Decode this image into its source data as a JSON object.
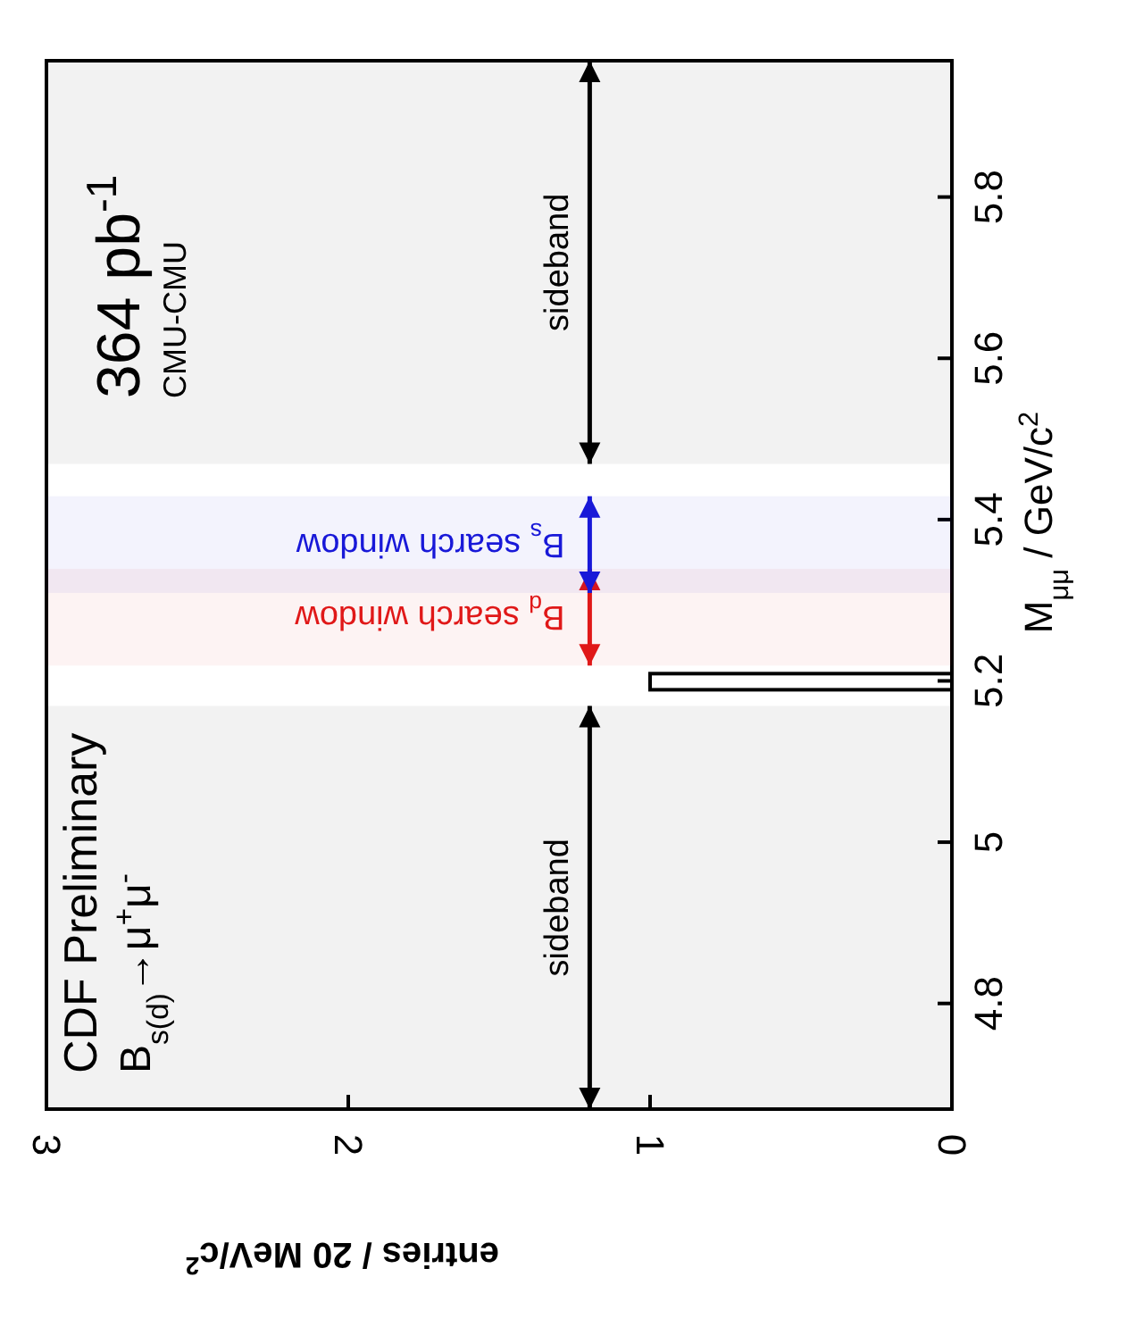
{
  "chart_data": {
    "type": "histogram",
    "orientation": "horizontal",
    "ylabel": "M$_{μμ}$ / GeV/c$^{2}$",
    "xlabel": "entries / 20 MeV/c$^{2}$",
    "bins": [
      5.189,
      5.209
    ],
    "values": [
      1
    ],
    "color": "#ffffff",
    "ylim": [
      4.669,
      5.969
    ],
    "yticks": [
      4.8,
      5,
      5.2,
      5.4,
      5.6,
      5.8
    ],
    "xlim": [
      3,
      0
    ],
    "xticks": [
      3,
      2,
      1,
      0
    ],
    "grid": false,
    "bands": [
      {
        "axis": "y",
        "from": 4.669,
        "to": 5.169,
        "label": "sideband",
        "color": "#000000"
      },
      {
        "axis": "y",
        "from": 5.219,
        "to": 5.339,
        "label": "B$_{d}$ search window",
        "color": "#e01818"
      },
      {
        "axis": "y",
        "from": 5.309,
        "to": 5.429,
        "label": "B$_{s}$ search window",
        "color": "#1818d8"
      },
      {
        "axis": "y",
        "from": 5.469,
        "to": 5.969,
        "label": "sideband",
        "color": "#000000"
      }
    ],
    "annotations": [
      "CDF Preliminary",
      "B$_{s(d)}$→μ$^{+}$μ$^{-}$",
      "364 pb$^{-1}$",
      "CMU-CMU"
    ]
  }
}
